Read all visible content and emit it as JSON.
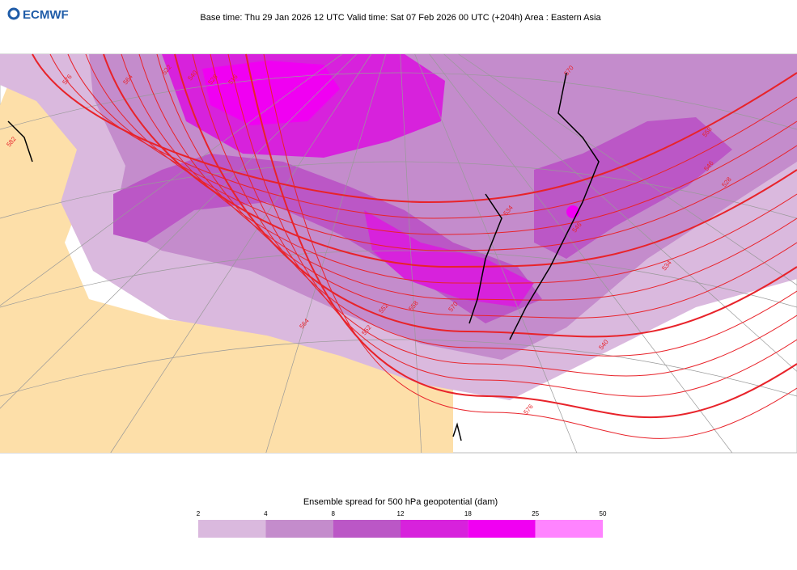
{
  "header": {
    "logo": "ECMWF",
    "title": "Base time: Thu 29 Jan 2026 12 UTC Valid time: Sat 07 Feb 2026 00 UTC (+204h) Area : Eastern Asia"
  },
  "map": {
    "contour_labels": [
      "576",
      "564",
      "540",
      "528",
      "516",
      "522",
      "534",
      "546",
      "552",
      "558",
      "570",
      "564",
      "552",
      "540",
      "534",
      "528",
      "546",
      "558",
      "570",
      "576",
      "582"
    ]
  },
  "legend": {
    "title": "Ensemble spread for 500 hPa geopotential (dam)",
    "ticks": [
      2,
      4,
      8,
      12,
      18,
      25,
      50
    ],
    "colors": [
      "#dab9de",
      "#c48ccc",
      "#bb57c6",
      "#d722dc",
      "#f000f2",
      "#ff84ff"
    ]
  }
}
